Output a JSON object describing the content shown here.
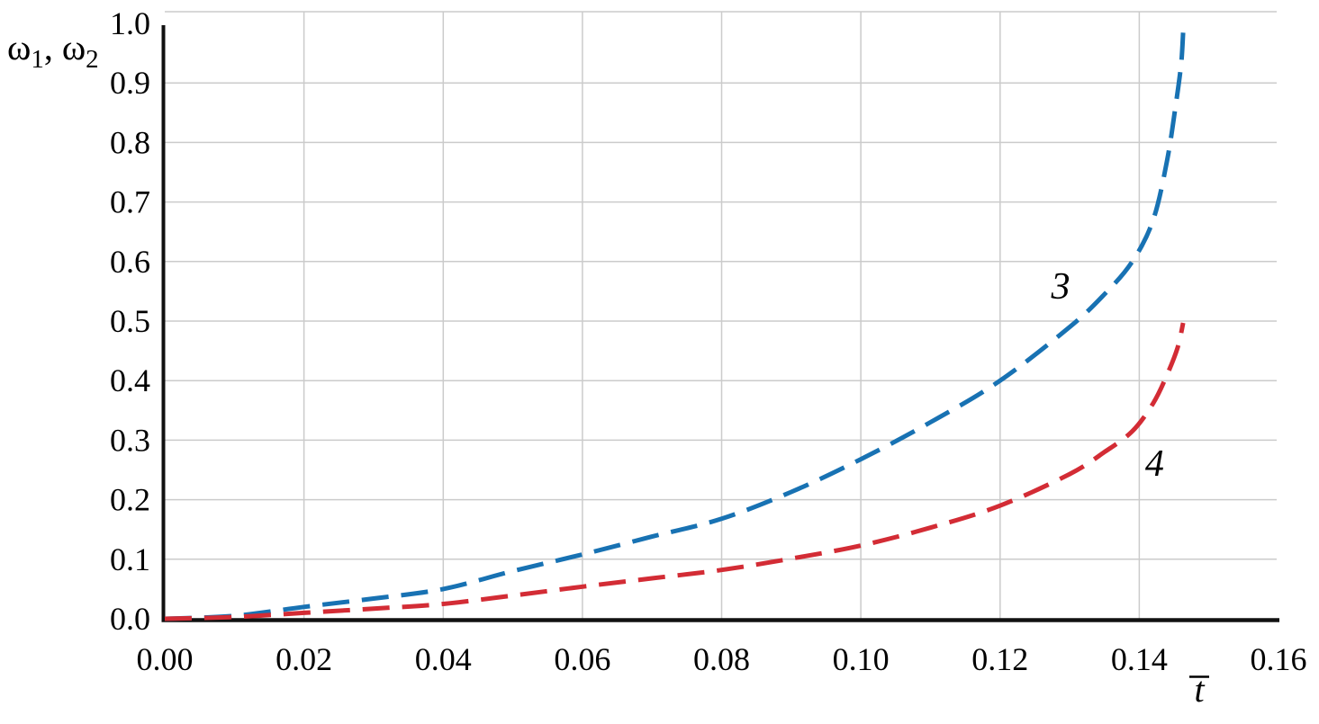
{
  "chart_data": {
    "type": "line",
    "title": "",
    "ylabel_parts": [
      {
        "text": "ω",
        "sub": false
      },
      {
        "text": "1",
        "sub": true
      },
      {
        "text": ", ω",
        "sub": false
      },
      {
        "text": "2",
        "sub": true
      }
    ],
    "xlabel": {
      "text": "t",
      "overline": true,
      "italic": true
    },
    "xlim": [
      0.0,
      0.16
    ],
    "ylim": [
      0.0,
      1.0
    ],
    "x_ticks": [
      {
        "value": 0.0,
        "label": "0.00"
      },
      {
        "value": 0.02,
        "label": "0.02"
      },
      {
        "value": 0.04,
        "label": "0.04"
      },
      {
        "value": 0.06,
        "label": "0.06"
      },
      {
        "value": 0.08,
        "label": "0.08"
      },
      {
        "value": 0.1,
        "label": "0.10"
      },
      {
        "value": 0.12,
        "label": "0.12"
      },
      {
        "value": 0.14,
        "label": "0.14"
      },
      {
        "value": 0.16,
        "label": "0.16"
      }
    ],
    "y_ticks": [
      {
        "value": 0.0,
        "label": "0.0"
      },
      {
        "value": 0.1,
        "label": "0.1"
      },
      {
        "value": 0.2,
        "label": "0.2"
      },
      {
        "value": 0.3,
        "label": "0.3"
      },
      {
        "value": 0.4,
        "label": "0.4"
      },
      {
        "value": 0.5,
        "label": "0.5"
      },
      {
        "value": 0.6,
        "label": "0.6"
      },
      {
        "value": 0.7,
        "label": "0.7"
      },
      {
        "value": 0.8,
        "label": "0.8"
      },
      {
        "value": 0.9,
        "label": "0.9"
      },
      {
        "value": 1.0,
        "label": "1.0"
      }
    ],
    "grid": {
      "show": true,
      "color": "#cbcbcb",
      "vertical_step": 0.02,
      "horizontal_step": 0.1
    },
    "axis_color": "#111111",
    "background_color": "#ffffff",
    "legend_position": "inline-curve-numbers",
    "series": [
      {
        "name": "3",
        "color": "#1872b3",
        "style": "dashed",
        "points": [
          [
            0.0,
            0.0
          ],
          [
            0.01,
            0.005
          ],
          [
            0.02,
            0.02
          ],
          [
            0.03,
            0.034
          ],
          [
            0.04,
            0.05
          ],
          [
            0.05,
            0.08
          ],
          [
            0.06,
            0.108
          ],
          [
            0.07,
            0.138
          ],
          [
            0.08,
            0.168
          ],
          [
            0.09,
            0.213
          ],
          [
            0.1,
            0.268
          ],
          [
            0.11,
            0.33
          ],
          [
            0.12,
            0.4
          ],
          [
            0.13,
            0.49
          ],
          [
            0.135,
            0.545
          ],
          [
            0.139,
            0.6
          ],
          [
            0.142,
            0.67
          ],
          [
            0.144,
            0.77
          ],
          [
            0.1452,
            0.86
          ],
          [
            0.146,
            0.93
          ],
          [
            0.1463,
            0.985
          ]
        ],
        "annotation": {
          "text": "3",
          "t": 0.1287,
          "w": 0.559
        }
      },
      {
        "name": "4",
        "color": "#d32c35",
        "style": "dashed",
        "points": [
          [
            0.0,
            0.0
          ],
          [
            0.01,
            0.003
          ],
          [
            0.02,
            0.01
          ],
          [
            0.03,
            0.017
          ],
          [
            0.04,
            0.025
          ],
          [
            0.05,
            0.039
          ],
          [
            0.06,
            0.054
          ],
          [
            0.07,
            0.068
          ],
          [
            0.08,
            0.082
          ],
          [
            0.09,
            0.101
          ],
          [
            0.1,
            0.123
          ],
          [
            0.11,
            0.153
          ],
          [
            0.12,
            0.19
          ],
          [
            0.13,
            0.243
          ],
          [
            0.135,
            0.28
          ],
          [
            0.139,
            0.315
          ],
          [
            0.142,
            0.362
          ],
          [
            0.144,
            0.41
          ],
          [
            0.1455,
            0.455
          ],
          [
            0.1463,
            0.497
          ]
        ],
        "annotation": {
          "text": "4",
          "t": 0.1422,
          "w": 0.261
        }
      }
    ]
  }
}
